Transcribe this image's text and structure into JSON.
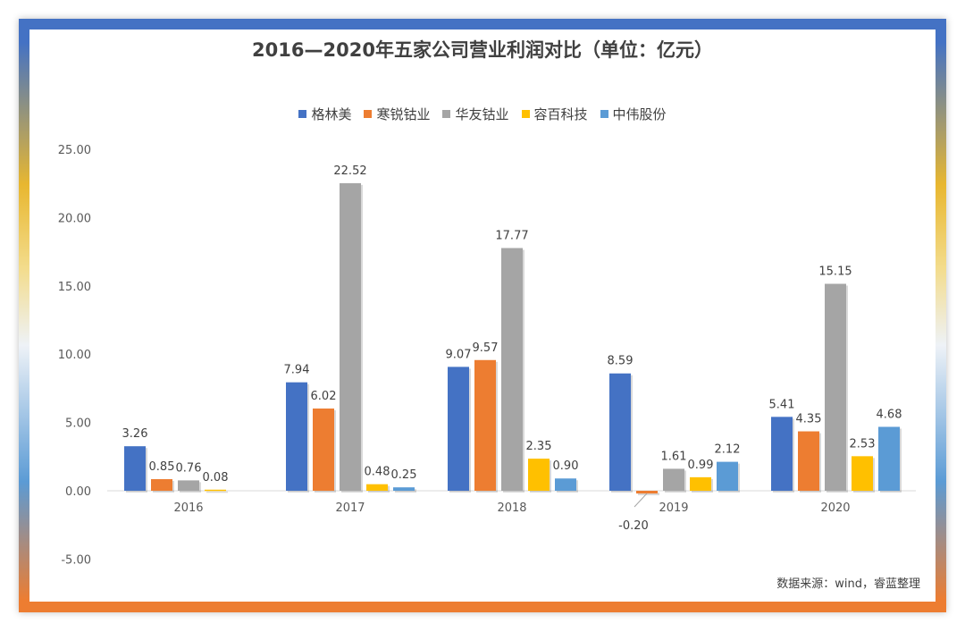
{
  "chart_data": {
    "type": "bar",
    "title": "2016—2020年五家公司营业利润对比（单位：亿元）",
    "categories": [
      "2016",
      "2017",
      "2018",
      "2019",
      "2020"
    ],
    "series": [
      {
        "name": "格林美",
        "color": "#4472c4",
        "values": [
          3.26,
          7.94,
          9.07,
          8.59,
          5.41
        ]
      },
      {
        "name": "寒锐钴业",
        "color": "#ed7d31",
        "values": [
          0.85,
          6.02,
          9.57,
          -0.2,
          4.35
        ]
      },
      {
        "name": "华友钴业",
        "color": "#a5a5a5",
        "values": [
          0.76,
          22.52,
          17.77,
          1.61,
          15.15
        ]
      },
      {
        "name": "容百科技",
        "color": "#ffc000",
        "values": [
          0.08,
          0.48,
          2.35,
          0.99,
          2.53
        ]
      },
      {
        "name": "中伟股份",
        "color": "#5b9bd5",
        "values": [
          null,
          0.25,
          0.9,
          2.12,
          4.68
        ]
      }
    ],
    "ylim": [
      -5,
      25
    ],
    "yticks": [
      "-5.00",
      "0.00",
      "5.00",
      "10.00",
      "15.00",
      "20.00",
      "25.00"
    ],
    "grid": false,
    "legend_position": "top"
  },
  "source": "数据来源：wind，睿蓝整理"
}
